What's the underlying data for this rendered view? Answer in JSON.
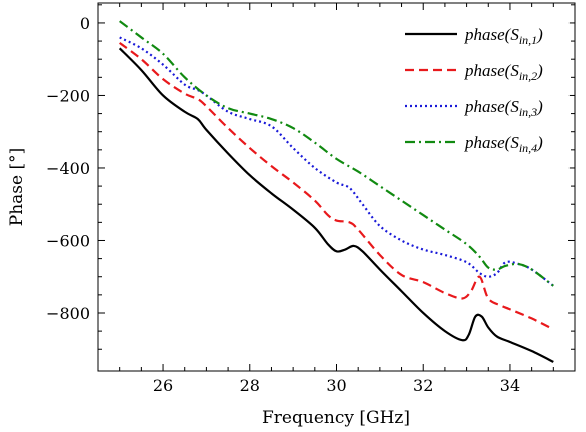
{
  "chart_data": {
    "type": "line",
    "xlabel": "Frequency [GHz]",
    "ylabel": "Phase [°]",
    "xlim": [
      24.5,
      35.5
    ],
    "ylim": [
      -960,
      55
    ],
    "x_ticks": [
      26,
      28,
      30,
      32,
      34
    ],
    "y_ticks": [
      0,
      -200,
      -400,
      -600,
      -800
    ],
    "x_tick_labels": [
      "26",
      "28",
      "30",
      "32",
      "34"
    ],
    "y_tick_labels": [
      "0",
      "−200",
      "−400",
      "−600",
      "−800"
    ],
    "legend_position": "top-right",
    "grid": false,
    "series": [
      {
        "name": "phase(S",
        "subscript": "in,1",
        "suffix": ")",
        "color": "#000000",
        "dash": "",
        "points": [
          [
            25,
            -70
          ],
          [
            25.5,
            -130
          ],
          [
            26,
            -200
          ],
          [
            26.5,
            -245
          ],
          [
            26.8,
            -265
          ],
          [
            27,
            -295
          ],
          [
            27.5,
            -360
          ],
          [
            28,
            -420
          ],
          [
            28.5,
            -470
          ],
          [
            29,
            -515
          ],
          [
            29.5,
            -565
          ],
          [
            29.8,
            -610
          ],
          [
            30,
            -630
          ],
          [
            30.2,
            -625
          ],
          [
            30.4,
            -615
          ],
          [
            30.6,
            -630
          ],
          [
            31,
            -680
          ],
          [
            31.5,
            -740
          ],
          [
            32,
            -800
          ],
          [
            32.5,
            -850
          ],
          [
            32.9,
            -875
          ],
          [
            33.05,
            -860
          ],
          [
            33.2,
            -810
          ],
          [
            33.35,
            -810
          ],
          [
            33.5,
            -840
          ],
          [
            33.7,
            -865
          ],
          [
            34,
            -880
          ],
          [
            34.5,
            -905
          ],
          [
            35,
            -935
          ]
        ]
      },
      {
        "name": "phase(S",
        "subscript": "in,2",
        "suffix": ")",
        "color": "#e8191c",
        "dash": "9,5",
        "points": [
          [
            25,
            -55
          ],
          [
            25.5,
            -100
          ],
          [
            26,
            -155
          ],
          [
            26.5,
            -195
          ],
          [
            26.8,
            -210
          ],
          [
            27,
            -230
          ],
          [
            27.5,
            -290
          ],
          [
            28,
            -345
          ],
          [
            28.5,
            -395
          ],
          [
            29,
            -440
          ],
          [
            29.5,
            -490
          ],
          [
            29.8,
            -530
          ],
          [
            30,
            -545
          ],
          [
            30.3,
            -550
          ],
          [
            30.5,
            -570
          ],
          [
            31,
            -640
          ],
          [
            31.5,
            -695
          ],
          [
            32,
            -715
          ],
          [
            32.5,
            -745
          ],
          [
            32.9,
            -760
          ],
          [
            33.1,
            -740
          ],
          [
            33.3,
            -700
          ],
          [
            33.5,
            -760
          ],
          [
            33.8,
            -780
          ],
          [
            34,
            -790
          ],
          [
            34.5,
            -815
          ],
          [
            35,
            -845
          ]
        ]
      },
      {
        "name": "phase(S",
        "subscript": "in,3",
        "suffix": ")",
        "color": "#1a1ad8",
        "dash": "2,3",
        "points": [
          [
            25,
            -40
          ],
          [
            25.5,
            -70
          ],
          [
            26,
            -115
          ],
          [
            26.5,
            -170
          ],
          [
            26.8,
            -185
          ],
          [
            27,
            -200
          ],
          [
            27.5,
            -245
          ],
          [
            28,
            -265
          ],
          [
            28.5,
            -285
          ],
          [
            29,
            -345
          ],
          [
            29.5,
            -400
          ],
          [
            30,
            -440
          ],
          [
            30.3,
            -455
          ],
          [
            30.6,
            -500
          ],
          [
            31,
            -560
          ],
          [
            31.5,
            -600
          ],
          [
            32,
            -625
          ],
          [
            32.5,
            -640
          ],
          [
            33,
            -660
          ],
          [
            33.3,
            -690
          ],
          [
            33.5,
            -700
          ],
          [
            33.7,
            -690
          ],
          [
            33.9,
            -660
          ],
          [
            34.2,
            -665
          ],
          [
            34.5,
            -680
          ],
          [
            35,
            -725
          ]
        ]
      },
      {
        "name": "phase(S",
        "subscript": "in,4",
        "suffix": ")",
        "color": "#118a11",
        "dash": "10,4,2,4",
        "points": [
          [
            25,
            5
          ],
          [
            25.5,
            -40
          ],
          [
            26,
            -85
          ],
          [
            26.5,
            -150
          ],
          [
            27,
            -200
          ],
          [
            27.5,
            -235
          ],
          [
            28,
            -250
          ],
          [
            28.5,
            -265
          ],
          [
            29,
            -290
          ],
          [
            29.5,
            -330
          ],
          [
            30,
            -375
          ],
          [
            30.5,
            -410
          ],
          [
            31,
            -450
          ],
          [
            31.5,
            -490
          ],
          [
            32,
            -530
          ],
          [
            32.5,
            -570
          ],
          [
            33,
            -610
          ],
          [
            33.3,
            -645
          ],
          [
            33.5,
            -675
          ],
          [
            33.7,
            -680
          ],
          [
            33.9,
            -670
          ],
          [
            34.2,
            -665
          ],
          [
            34.5,
            -680
          ],
          [
            35,
            -725
          ]
        ]
      }
    ]
  }
}
